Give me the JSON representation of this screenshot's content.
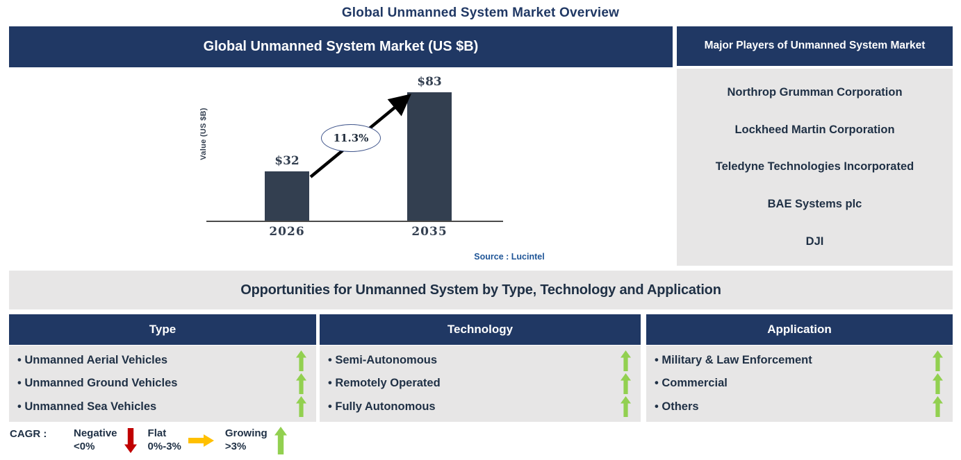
{
  "page_title": "Global Unmanned System Market Overview",
  "chart_panel": {
    "title": "Global Unmanned System Market (US $B)",
    "source": "Source : Lucintel"
  },
  "chart_data": {
    "type": "bar",
    "title": "Global Unmanned System Market (US $B)",
    "categories": [
      "2026",
      "2035"
    ],
    "values": [
      32,
      83
    ],
    "value_labels": [
      "$32",
      "$83"
    ],
    "ylabel": "Value (US $B)",
    "xlabel": "",
    "ylim": [
      0,
      95
    ],
    "grid": false,
    "cagr_annotation": "11.3%",
    "bar_color": "#333F50",
    "annotation_note": "arrow from 2026 bar top to 2035 bar top with CAGR ellipse"
  },
  "major_players": {
    "title": "Major Players of Unmanned System Market",
    "items": [
      "Northrop Grumman Corporation",
      "Lockheed Martin Corporation",
      "Teledyne Technologies Incorporated",
      "BAE Systems plc",
      "DJI"
    ]
  },
  "opportunities": {
    "title": "Opportunities for Unmanned System by Type, Technology and Application",
    "columns": [
      {
        "header": "Type",
        "items": [
          "Unmanned Aerial Vehicles",
          "Unmanned Ground Vehicles",
          "Unmanned Sea Vehicles"
        ],
        "trends": [
          "growing",
          "growing",
          "growing"
        ]
      },
      {
        "header": "Technology",
        "items": [
          "Semi-Autonomous",
          "Remotely Operated",
          "Fully Autonomous"
        ],
        "trends": [
          "growing",
          "growing",
          "growing"
        ]
      },
      {
        "header": "Application",
        "items": [
          "Military & Law Enforcement",
          "Commercial",
          "Others"
        ],
        "trends": [
          "growing",
          "growing",
          "growing"
        ]
      }
    ]
  },
  "legend": {
    "label": "CAGR :",
    "entries": [
      {
        "name": "Negative",
        "range": "<0%",
        "direction": "down",
        "color": "#C00000"
      },
      {
        "name": "Flat",
        "range": "0%-3%",
        "direction": "right",
        "color": "#FFC000"
      },
      {
        "name": "Growing",
        "range": ">3%",
        "direction": "up",
        "color": "#92D050"
      }
    ]
  },
  "colors": {
    "header_navy": "#203864",
    "panel_gray": "#E7E6E6",
    "bar_slate": "#333F50",
    "text_navy": "#1F3045",
    "source_blue": "#1F5597",
    "growing_green": "#92D050",
    "negative_red": "#C00000",
    "flat_orange": "#FFC000"
  }
}
